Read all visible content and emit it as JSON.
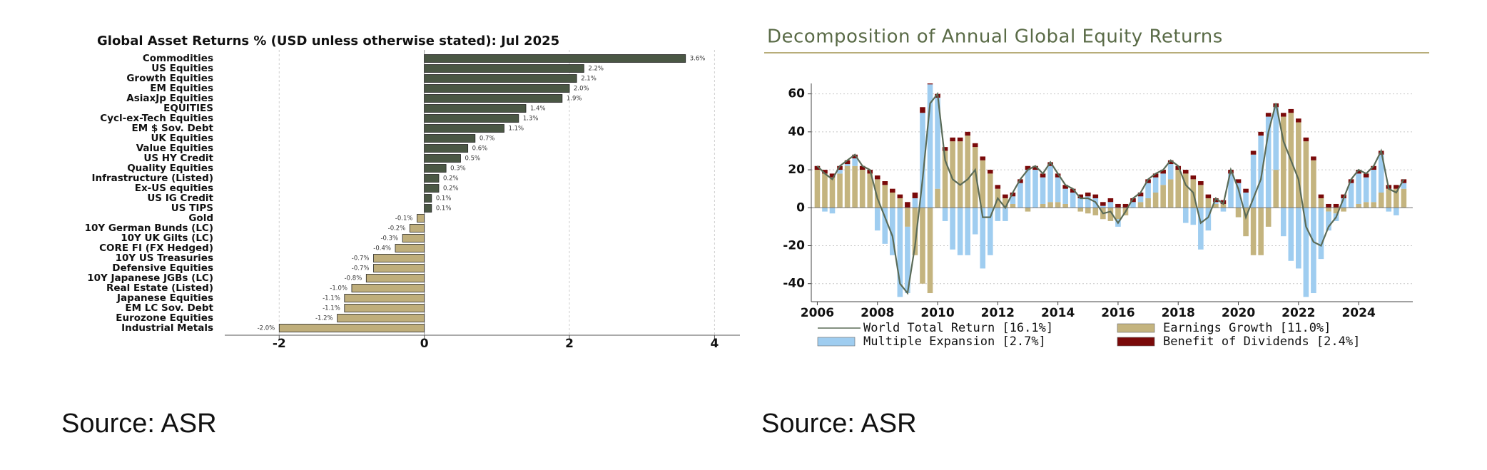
{
  "chart_data": [
    {
      "type": "hbar",
      "title": "Global Asset Returns % (USD unless otherwise stated): Jul 2025",
      "categories": [
        "Commodities",
        "US Equities",
        "Growth Equities",
        "EM Equities",
        "AsiaxJp Equities",
        "EQUITIES",
        "Cycl-ex-Tech Equities",
        "EM $ Sov. Debt",
        "UK Equities",
        "Value Equities",
        "US HY Credit",
        "Quality Equities",
        "Infrastructure (Listed)",
        "Ex-US equities",
        "US IG Credit",
        "US TIPS",
        "Gold",
        "10Y German Bunds (LC)",
        "10Y UK Gilts (LC)",
        "CORE FI (FX Hedged)",
        "10Y US Treasuries",
        "Defensive Equities",
        "10Y Japanese JGBs (LC)",
        "Real Estate (Listed)",
        "Japanese Equities",
        "EM LC Sov. Debt",
        "Eurozone Equities",
        "Industrial Metals"
      ],
      "values": [
        3.6,
        2.2,
        2.1,
        2.0,
        1.9,
        1.4,
        1.3,
        1.1,
        0.7,
        0.6,
        0.5,
        0.3,
        0.2,
        0.2,
        0.1,
        0.1,
        -0.1,
        -0.2,
        -0.3,
        -0.4,
        -0.7,
        -0.7,
        -0.8,
        -1.0,
        -1.1,
        -1.1,
        -1.2,
        -2.0
      ],
      "value_labels": [
        "3.6%",
        "2.2%",
        "2.1%",
        "2.0%",
        "1.9%",
        "1.4%",
        "1.3%",
        "1.1%",
        "0.7%",
        "0.6%",
        "0.5%",
        "0.3%",
        "0.2%",
        "0.2%",
        "0.1%",
        "0.1%",
        "-0.1%",
        "-0.2%",
        "-0.3%",
        "-0.4%",
        "-0.7%",
        "-0.7%",
        "-0.8%",
        "-1.0%",
        "-1.1%",
        "-1.1%",
        "-1.2%",
        "-2.0%"
      ],
      "color_positive": "#4a5744",
      "color_negative": "#bfae7b",
      "xlim": [
        -2.75,
        4.35
      ],
      "xticks": [
        -2,
        0,
        2,
        4
      ],
      "grid": true
    },
    {
      "type": "combo",
      "title": "Decomposition of Annual Global Equity Returns",
      "x": [
        2006,
        2006.25,
        2006.5,
        2006.75,
        2007,
        2007.25,
        2007.5,
        2007.75,
        2008,
        2008.25,
        2008.5,
        2008.75,
        2009,
        2009.25,
        2009.5,
        2009.75,
        2010,
        2010.25,
        2010.5,
        2010.75,
        2011,
        2011.25,
        2011.5,
        2011.75,
        2012,
        2012.25,
        2012.5,
        2012.75,
        2013,
        2013.25,
        2013.5,
        2013.75,
        2014,
        2014.25,
        2014.5,
        2014.75,
        2015,
        2015.25,
        2015.5,
        2015.75,
        2016,
        2016.25,
        2016.5,
        2016.75,
        2017,
        2017.25,
        2017.5,
        2017.75,
        2018,
        2018.25,
        2018.5,
        2018.75,
        2019,
        2019.25,
        2019.5,
        2019.75,
        2020,
        2020.25,
        2020.5,
        2020.75,
        2021,
        2021.25,
        2021.5,
        2021.75,
        2022,
        2022.25,
        2022.5,
        2022.75,
        2023,
        2023.25,
        2023.5,
        2023.75,
        2024,
        2024.25,
        2024.5,
        2024.75,
        2025,
        2025.25,
        2025.5
      ],
      "series": [
        {
          "name": "World Total Return [16.1%]",
          "kind": "line",
          "color": "#5b6b57",
          "values": [
            22,
            18,
            15,
            22,
            25,
            28,
            22,
            20,
            5,
            -5,
            -15,
            -40,
            -45,
            -20,
            15,
            55,
            60,
            25,
            15,
            12,
            15,
            20,
            -5,
            -5,
            5,
            0,
            8,
            15,
            20,
            22,
            18,
            24,
            18,
            12,
            10,
            5,
            5,
            3,
            -3,
            -2,
            -8,
            -2,
            5,
            8,
            15,
            18,
            20,
            25,
            22,
            12,
            8,
            -8,
            -5,
            5,
            2,
            20,
            10,
            -5,
            5,
            15,
            40,
            55,
            35,
            25,
            15,
            -10,
            -18,
            -20,
            -10,
            -5,
            5,
            15,
            20,
            18,
            22,
            30,
            10,
            8,
            15
          ]
        },
        {
          "name": "Earnings Growth [11.0%]",
          "kind": "bar",
          "color": "#c4b47f",
          "values": [
            20,
            18,
            16,
            18,
            22,
            22,
            20,
            18,
            15,
            12,
            8,
            5,
            -10,
            -25,
            -40,
            -45,
            10,
            30,
            35,
            35,
            38,
            32,
            25,
            18,
            10,
            5,
            2,
            0,
            -2,
            0,
            2,
            3,
            3,
            2,
            0,
            -2,
            -3,
            -4,
            -6,
            -7,
            -6,
            -4,
            0,
            3,
            5,
            8,
            12,
            15,
            20,
            18,
            15,
            12,
            5,
            2,
            2,
            0,
            -5,
            -15,
            -25,
            -25,
            -10,
            20,
            48,
            50,
            45,
            35,
            25,
            5,
            -2,
            -3,
            -2,
            0,
            2,
            3,
            3,
            8,
            10,
            10,
            10
          ]
        },
        {
          "name": "Multiple Expansion [2.7%]",
          "kind": "bar",
          "color": "#9fcdf0",
          "values": [
            0,
            -2,
            -3,
            2,
            1,
            4,
            0,
            0,
            -12,
            -19,
            -25,
            -47,
            -35,
            5,
            50,
            65,
            48,
            -7,
            -22,
            -25,
            -25,
            -14,
            -32,
            -25,
            -7,
            -7,
            4,
            13,
            20,
            20,
            14,
            19,
            13,
            8,
            8,
            5,
            6,
            5,
            1,
            3,
            -4,
            0,
            3,
            3,
            8,
            8,
            6,
            8,
            0,
            -8,
            -9,
            -22,
            -12,
            1,
            -2,
            18,
            13,
            8,
            28,
            38,
            48,
            33,
            -15,
            -28,
            -32,
            -47,
            -45,
            -27,
            -10,
            -4,
            5,
            13,
            16,
            13,
            17,
            20,
            -2,
            -4,
            3
          ]
        },
        {
          "name": "Benefit of Dividends [2.4%]",
          "kind": "bar",
          "color": "#7a0a0a",
          "values": [
            2,
            2,
            2,
            2,
            2,
            2,
            2,
            2,
            2,
            2,
            2,
            2,
            3,
            3,
            3,
            3,
            2,
            2,
            2,
            2,
            2,
            2,
            2,
            2,
            2,
            2,
            2,
            2,
            2,
            2,
            2,
            2,
            2,
            2,
            2,
            2,
            2,
            2,
            2,
            2,
            2,
            2,
            2,
            2,
            2,
            2,
            2,
            2,
            2,
            2,
            2,
            2,
            2,
            2,
            2,
            2,
            2,
            2,
            2,
            2,
            2,
            2,
            2,
            2,
            2,
            2,
            2,
            2,
            2,
            2,
            2,
            2,
            2,
            2,
            2,
            2,
            2,
            2,
            2
          ]
        }
      ],
      "xlim": [
        2005.8,
        2025.8
      ],
      "xticks": [
        2006,
        2008,
        2010,
        2012,
        2014,
        2016,
        2018,
        2020,
        2022,
        2024
      ],
      "ylim": [
        -49.5,
        65.5
      ],
      "yticks": [
        -40,
        -20,
        0,
        20,
        40,
        60
      ],
      "grid": true
    }
  ],
  "sources": [
    "Source: ASR",
    "Source: ASR"
  ]
}
